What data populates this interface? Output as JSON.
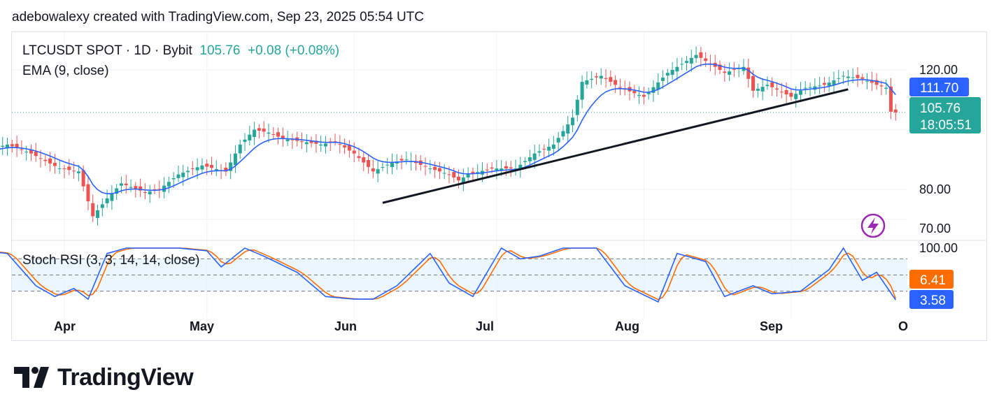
{
  "header": {
    "credit": "adebowalexy created with TradingView.com, Sep 23, 2025 05:54 UTC"
  },
  "legend": {
    "symbol": "LTCUSDT SPOT · 1D · Bybit",
    "price": "105.76",
    "change": "+0.08 (+0.08%)",
    "ema_label": "EMA (9, close)",
    "stoch_label": "Stoch RSI (3, 3, 14, 14, close)"
  },
  "price_axis": {
    "ticks": [
      "120.00",
      "80.00",
      "70.00"
    ]
  },
  "price_labels": {
    "ema": "111.70",
    "last": "105.76",
    "countdown": "18:05:51"
  },
  "stoch_axis": {
    "top": "100.00",
    "d_value": "6.41",
    "k_value": "3.58"
  },
  "time_axis": {
    "labels": [
      "Apr",
      "May",
      "Jun",
      "Jul",
      "Aug",
      "Sep",
      "O"
    ]
  },
  "brand": {
    "name": "TradingView"
  },
  "colors": {
    "up": "#26a69a",
    "down": "#ef5350",
    "ema": "#2962ff",
    "stoch_k": "#2962ff",
    "stoch_d": "#ff6d00",
    "band": "#e3f2fd"
  },
  "chart_data": {
    "type": "candlestick",
    "ylabel": "",
    "ylim": [
      66,
      132
    ],
    "price_anchors": [
      [
        "Mar 15",
        93
      ],
      [
        "Mar 20",
        95
      ],
      [
        "Mar 25",
        92
      ],
      [
        "Mar 31",
        87
      ],
      [
        "Apr 4",
        86
      ],
      [
        "Apr 7",
        71
      ],
      [
        "Apr 10",
        77
      ],
      [
        "Apr 13",
        82
      ],
      [
        "Apr 18",
        79
      ],
      [
        "Apr 21",
        80
      ],
      [
        "Apr 25",
        85
      ],
      [
        "Apr 30",
        88
      ],
      [
        "May 5",
        86
      ],
      [
        "May 8",
        95
      ],
      [
        "May 11",
        100
      ],
      [
        "May 14",
        99
      ],
      [
        "May 17",
        97
      ],
      [
        "May 21",
        96
      ],
      [
        "May 25",
        95
      ],
      [
        "May 28",
        96
      ],
      [
        "Jun 1",
        92
      ],
      [
        "Jun 5",
        86
      ],
      [
        "Jun 9",
        89
      ],
      [
        "Jun 12",
        90
      ],
      [
        "Jun 17",
        87
      ],
      [
        "Jun 21",
        85
      ],
      [
        "Jun 23",
        83
      ],
      [
        "Jun 25",
        85
      ],
      [
        "Jun 30",
        87
      ],
      [
        "Jul 5",
        87
      ],
      [
        "Jul 9",
        92
      ],
      [
        "Jul 13",
        95
      ],
      [
        "Jul 17",
        104
      ],
      [
        "Jul 19",
        116
      ],
      [
        "Jul 23",
        118
      ],
      [
        "Jul 27",
        114
      ],
      [
        "Aug 1",
        111
      ],
      [
        "Aug 6",
        119
      ],
      [
        "Aug 9",
        122
      ],
      [
        "Aug 12",
        125
      ],
      [
        "Aug 14",
        123
      ],
      [
        "Aug 18",
        119
      ],
      [
        "Aug 22",
        121
      ],
      [
        "Aug 24",
        113
      ],
      [
        "Aug 27",
        115
      ],
      [
        "Sep 1",
        111
      ],
      [
        "Sep 4",
        114
      ],
      [
        "Sep 8",
        115
      ],
      [
        "Sep 12",
        118
      ],
      [
        "Sep 16",
        117
      ],
      [
        "Sep 19",
        115
      ],
      [
        "Sep 21",
        114
      ],
      [
        "Sep 22",
        106
      ],
      [
        "Sep 23",
        105.76
      ]
    ],
    "ema_last": 111.7,
    "last_price": 105.76,
    "trendline": {
      "from": [
        "Jun 7",
        75.5
      ],
      "to": [
        "Sep 13",
        113.5
      ]
    },
    "stoch_rsi": {
      "ylim": [
        0,
        100
      ],
      "bands": [
        80,
        50,
        20
      ],
      "k_last": 3.58,
      "d_last": 6.41,
      "k_anchors": [
        [
          "Mar 15",
          95
        ],
        [
          "Mar 20",
          90
        ],
        [
          "Mar 26",
          30
        ],
        [
          "Mar 30",
          10
        ],
        [
          "Apr 3",
          25
        ],
        [
          "Apr 6",
          5
        ],
        [
          "Apr 10",
          90
        ],
        [
          "Apr 14",
          100
        ],
        [
          "Apr 20",
          100
        ],
        [
          "Apr 25",
          100
        ],
        [
          "May 1",
          95
        ],
        [
          "May 4",
          65
        ],
        [
          "May 9",
          100
        ],
        [
          "May 13",
          85
        ],
        [
          "May 20",
          55
        ],
        [
          "May 26",
          10
        ],
        [
          "Jun 1",
          5
        ],
        [
          "Jun 5",
          5
        ],
        [
          "Jun 10",
          30
        ],
        [
          "Jun 17",
          90
        ],
        [
          "Jun 21",
          35
        ],
        [
          "Jun 26",
          10
        ],
        [
          "Jul 2",
          100
        ],
        [
          "Jul 6",
          80
        ],
        [
          "Jul 10",
          85
        ],
        [
          "Jul 15",
          100
        ],
        [
          "Jul 22",
          100
        ],
        [
          "Jul 28",
          30
        ],
        [
          "Aug 4",
          0
        ],
        [
          "Aug 8",
          90
        ],
        [
          "Aug 14",
          75
        ],
        [
          "Aug 18",
          10
        ],
        [
          "Aug 24",
          30
        ],
        [
          "Aug 28",
          15
        ],
        [
          "Sep 3",
          20
        ],
        [
          "Sep 9",
          60
        ],
        [
          "Sep 12",
          100
        ],
        [
          "Sep 16",
          40
        ],
        [
          "Sep 19",
          55
        ],
        [
          "Sep 23",
          3.58
        ]
      ]
    },
    "x_ticks": [
      "Apr",
      "May",
      "Jun",
      "Jul",
      "Aug",
      "Sep",
      "O"
    ]
  }
}
